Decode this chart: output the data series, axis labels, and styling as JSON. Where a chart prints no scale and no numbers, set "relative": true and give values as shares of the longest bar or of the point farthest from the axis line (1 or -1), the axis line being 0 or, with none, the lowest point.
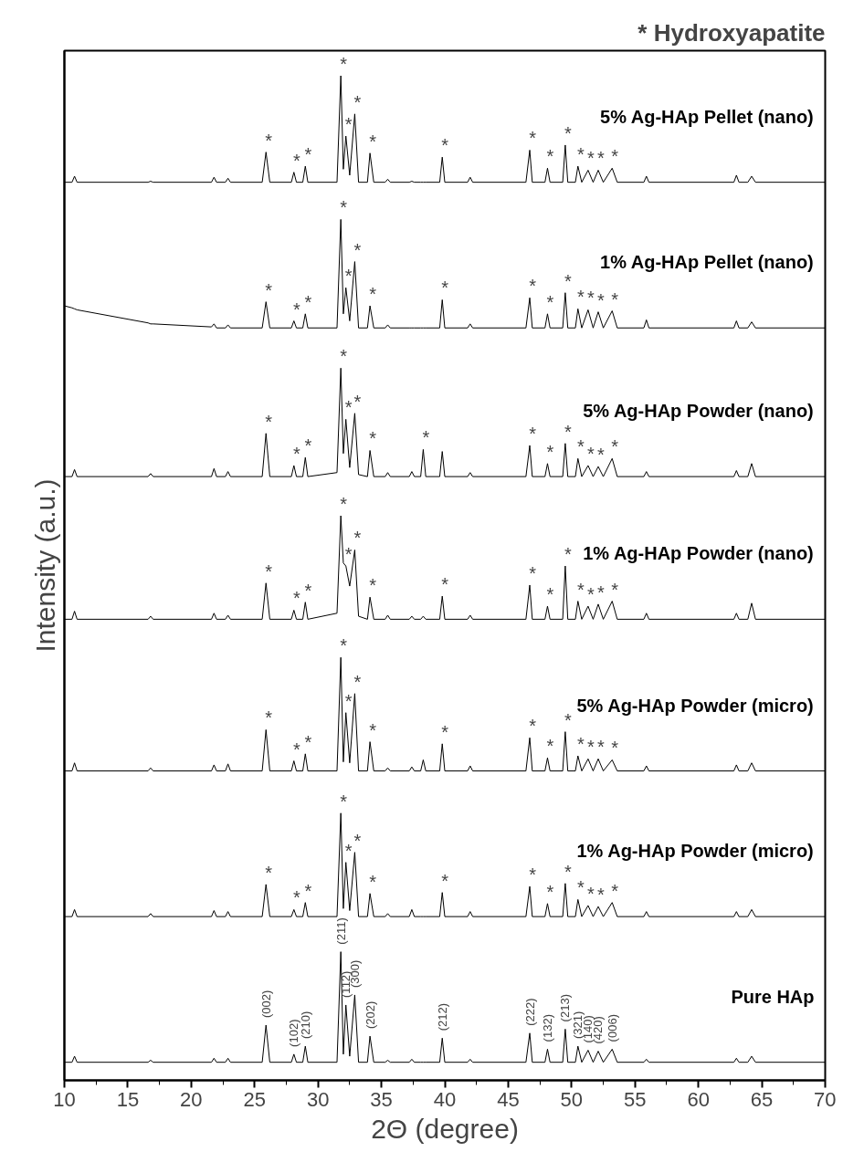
{
  "chart_data": {
    "type": "line",
    "title": "* Hydroxyapatite",
    "xlabel": "2Θ (degree)",
    "ylabel": "Intensity (a.u.)",
    "relative": true,
    "grid": false,
    "xlim": [
      10,
      70
    ],
    "xticks": [
      10,
      {
        "value": 12.5,
        "label": null
      },
      15,
      {
        "value": 17.5,
        "label": null
      },
      20,
      {
        "value": 22.5,
        "label": null
      },
      25,
      {
        "value": 27.5,
        "label": null
      },
      30,
      {
        "value": 32.5,
        "label": null
      },
      35,
      {
        "value": 37.5,
        "label": null
      },
      40,
      {
        "value": 42.5,
        "label": null
      },
      45,
      {
        "value": 47.5,
        "label": null
      },
      50,
      {
        "value": 52.5,
        "label": null
      },
      55,
      {
        "value": 57.5,
        "label": null
      },
      60,
      {
        "value": 62.5,
        "label": null
      },
      65,
      {
        "value": 67.5,
        "label": null
      },
      70
    ],
    "x": [
      10,
      10.6,
      10.8,
      11.0,
      16.6,
      16.8,
      17.0,
      21.6,
      21.8,
      22.0,
      22.7,
      22.9,
      23.1,
      25.6,
      25.9,
      26.2,
      27.9,
      28.1,
      28.3,
      28.8,
      29.0,
      29.2,
      31.5,
      31.8,
      32.0,
      32.2,
      32.5,
      32.9,
      33.2,
      33.9,
      34.1,
      34.4,
      35.3,
      35.5,
      35.7,
      37.2,
      37.4,
      37.6,
      38.1,
      38.3,
      38.5,
      39.6,
      39.8,
      40.0,
      41.8,
      42.0,
      42.2,
      46.4,
      46.7,
      46.9,
      47.9,
      48.1,
      48.3,
      49.3,
      49.5,
      49.7,
      50.3,
      50.5,
      50.8,
      51.3,
      51.7,
      52.1,
      52.5,
      53.2,
      53.6,
      55.7,
      55.9,
      56.1,
      62.8,
      63.0,
      63.2,
      63.9,
      64.2,
      64.5,
      70
    ],
    "series": [
      {
        "name": "5% Ag-HAp Pellet (nano)",
        "color": "#000000",
        "values": [
          0.894,
          0.894,
          0.9,
          0.894,
          0.894,
          0.895,
          0.894,
          0.894,
          0.899,
          0.894,
          0.894,
          0.898,
          0.894,
          0.894,
          0.924,
          0.894,
          0.894,
          0.904,
          0.894,
          0.894,
          0.91,
          0.894,
          0.894,
          1.0,
          0.907,
          0.94,
          0.901,
          0.962,
          0.894,
          0.894,
          0.923,
          0.894,
          0.894,
          0.897,
          0.894,
          0.894,
          0.895,
          0.894,
          0.894,
          0.894,
          0.894,
          0.894,
          0.919,
          0.894,
          0.894,
          0.899,
          0.894,
          0.894,
          0.926,
          0.894,
          0.894,
          0.908,
          0.894,
          0.894,
          0.931,
          0.894,
          0.894,
          0.91,
          0.894,
          0.906,
          0.894,
          0.906,
          0.894,
          0.908,
          0.894,
          0.894,
          0.9,
          0.894,
          0.894,
          0.901,
          0.894,
          0.894,
          0.9,
          0.894,
          0.894
        ]
      },
      {
        "name": "1% Ag-HAp Pellet (nano)",
        "color": "#000000",
        "values": [
          0.771,
          0.769,
          0.768,
          0.767,
          0.754,
          0.753,
          0.753,
          0.75,
          0.753,
          0.749,
          0.749,
          0.752,
          0.749,
          0.749,
          0.775,
          0.749,
          0.749,
          0.756,
          0.749,
          0.749,
          0.763,
          0.749,
          0.749,
          0.857,
          0.763,
          0.789,
          0.756,
          0.815,
          0.749,
          0.749,
          0.771,
          0.749,
          0.749,
          0.752,
          0.749,
          0.749,
          0.749,
          0.749,
          0.749,
          0.749,
          0.749,
          0.749,
          0.777,
          0.749,
          0.749,
          0.753,
          0.749,
          0.749,
          0.779,
          0.749,
          0.749,
          0.763,
          0.749,
          0.749,
          0.784,
          0.749,
          0.749,
          0.768,
          0.749,
          0.767,
          0.749,
          0.765,
          0.749,
          0.766,
          0.749,
          0.749,
          0.757,
          0.749,
          0.749,
          0.756,
          0.749,
          0.749,
          0.755,
          0.749,
          0.749
        ]
      },
      {
        "name": "5% Ag-HAp Powder (nano)",
        "color": "#000000",
        "values": [
          0.601,
          0.601,
          0.608,
          0.601,
          0.601,
          0.604,
          0.601,
          0.601,
          0.609,
          0.601,
          0.601,
          0.606,
          0.601,
          0.601,
          0.644,
          0.601,
          0.601,
          0.612,
          0.601,
          0.601,
          0.62,
          0.601,
          0.605,
          0.709,
          0.624,
          0.658,
          0.61,
          0.664,
          0.603,
          0.601,
          0.627,
          0.601,
          0.601,
          0.605,
          0.601,
          0.601,
          0.606,
          0.601,
          0.601,
          0.628,
          0.601,
          0.601,
          0.626,
          0.601,
          0.601,
          0.605,
          0.601,
          0.601,
          0.632,
          0.601,
          0.601,
          0.614,
          0.601,
          0.601,
          0.634,
          0.601,
          0.601,
          0.619,
          0.601,
          0.612,
          0.601,
          0.611,
          0.601,
          0.619,
          0.601,
          0.601,
          0.606,
          0.601,
          0.601,
          0.607,
          0.601,
          0.601,
          0.614,
          0.601,
          0.601
        ]
      },
      {
        "name": "1% Ag-HAp Powder (nano)",
        "color": "#000000",
        "values": [
          0.459,
          0.459,
          0.467,
          0.459,
          0.459,
          0.462,
          0.459,
          0.459,
          0.465,
          0.459,
          0.459,
          0.463,
          0.459,
          0.459,
          0.495,
          0.459,
          0.459,
          0.468,
          0.459,
          0.459,
          0.476,
          0.459,
          0.465,
          0.562,
          0.515,
          0.512,
          0.492,
          0.528,
          0.462,
          0.459,
          0.481,
          0.459,
          0.459,
          0.463,
          0.459,
          0.459,
          0.462,
          0.459,
          0.459,
          0.462,
          0.459,
          0.459,
          0.482,
          0.459,
          0.459,
          0.463,
          0.459,
          0.459,
          0.493,
          0.459,
          0.459,
          0.472,
          0.459,
          0.459,
          0.512,
          0.459,
          0.459,
          0.477,
          0.459,
          0.472,
          0.459,
          0.474,
          0.459,
          0.477,
          0.459,
          0.459,
          0.465,
          0.459,
          0.459,
          0.465,
          0.459,
          0.459,
          0.475,
          0.459,
          0.459
        ]
      },
      {
        "name": "5% Ag-HAp Powder (micro)",
        "color": "#000000",
        "values": [
          0.308,
          0.308,
          0.316,
          0.308,
          0.308,
          0.311,
          0.308,
          0.308,
          0.314,
          0.308,
          0.308,
          0.315,
          0.308,
          0.308,
          0.349,
          0.308,
          0.308,
          0.318,
          0.308,
          0.308,
          0.325,
          0.308,
          0.308,
          0.421,
          0.317,
          0.366,
          0.316,
          0.385,
          0.308,
          0.308,
          0.337,
          0.308,
          0.308,
          0.311,
          0.308,
          0.308,
          0.312,
          0.308,
          0.308,
          0.319,
          0.308,
          0.308,
          0.335,
          0.308,
          0.308,
          0.313,
          0.308,
          0.308,
          0.341,
          0.308,
          0.308,
          0.321,
          0.308,
          0.308,
          0.347,
          0.308,
          0.308,
          0.323,
          0.308,
          0.32,
          0.308,
          0.32,
          0.308,
          0.319,
          0.308,
          0.308,
          0.313,
          0.308,
          0.308,
          0.314,
          0.308,
          0.308,
          0.316,
          0.308,
          0.308
        ]
      },
      {
        "name": "1% Ag-HAp Powder (micro)",
        "color": "#000000",
        "values": [
          0.163,
          0.163,
          0.17,
          0.163,
          0.163,
          0.166,
          0.163,
          0.163,
          0.169,
          0.163,
          0.163,
          0.168,
          0.163,
          0.163,
          0.195,
          0.163,
          0.163,
          0.17,
          0.163,
          0.163,
          0.177,
          0.163,
          0.163,
          0.266,
          0.171,
          0.217,
          0.169,
          0.227,
          0.163,
          0.163,
          0.186,
          0.163,
          0.163,
          0.166,
          0.163,
          0.163,
          0.17,
          0.163,
          0.163,
          0.163,
          0.163,
          0.163,
          0.187,
          0.163,
          0.163,
          0.168,
          0.163,
          0.163,
          0.193,
          0.163,
          0.163,
          0.176,
          0.163,
          0.163,
          0.196,
          0.163,
          0.163,
          0.18,
          0.163,
          0.174,
          0.163,
          0.173,
          0.163,
          0.177,
          0.163,
          0.163,
          0.168,
          0.163,
          0.163,
          0.168,
          0.163,
          0.163,
          0.17,
          0.163,
          0.163
        ]
      },
      {
        "name": "Pure HAp",
        "color": "#000000",
        "values": [
          0.018,
          0.018,
          0.024,
          0.018,
          0.018,
          0.02,
          0.018,
          0.018,
          0.022,
          0.018,
          0.018,
          0.022,
          0.018,
          0.018,
          0.055,
          0.018,
          0.018,
          0.026,
          0.018,
          0.018,
          0.034,
          0.018,
          0.018,
          0.128,
          0.026,
          0.075,
          0.024,
          0.085,
          0.018,
          0.018,
          0.044,
          0.018,
          0.018,
          0.02,
          0.018,
          0.018,
          0.021,
          0.018,
          0.018,
          0.018,
          0.018,
          0.018,
          0.042,
          0.018,
          0.018,
          0.021,
          0.018,
          0.018,
          0.047,
          0.018,
          0.018,
          0.031,
          0.018,
          0.018,
          0.051,
          0.018,
          0.018,
          0.034,
          0.018,
          0.03,
          0.018,
          0.029,
          0.018,
          0.031,
          0.018,
          0.018,
          0.021,
          0.018,
          0.018,
          0.022,
          0.018,
          0.018,
          0.024,
          0.018,
          0.018
        ]
      }
    ],
    "annotations": [
      {
        "text": "*",
        "x": 25.9,
        "y": 0.924
      },
      {
        "text": "*",
        "x": 28.1,
        "y": 0.904
      },
      {
        "text": "*",
        "x": 29.0,
        "y": 0.91
      },
      {
        "text": "*",
        "x": 31.8,
        "y": 1.0
      },
      {
        "text": "*",
        "x": 32.2,
        "y": 0.94
      },
      {
        "text": "*",
        "x": 32.9,
        "y": 0.962
      },
      {
        "text": "*",
        "x": 34.1,
        "y": 0.923
      },
      {
        "text": "*",
        "x": 39.8,
        "y": 0.919
      },
      {
        "text": "*",
        "x": 46.7,
        "y": 0.926
      },
      {
        "text": "*",
        "x": 48.1,
        "y": 0.908
      },
      {
        "text": "*",
        "x": 49.5,
        "y": 0.931
      },
      {
        "text": "*",
        "x": 50.5,
        "y": 0.91
      },
      {
        "text": "*",
        "x": 51.3,
        "y": 0.906
      },
      {
        "text": "*",
        "x": 52.1,
        "y": 0.906
      },
      {
        "text": "*",
        "x": 53.2,
        "y": 0.908
      },
      {
        "text": "*",
        "x": 25.9,
        "y": 0.775
      },
      {
        "text": "*",
        "x": 28.1,
        "y": 0.756
      },
      {
        "text": "*",
        "x": 29.0,
        "y": 0.763
      },
      {
        "text": "*",
        "x": 31.8,
        "y": 0.857
      },
      {
        "text": "*",
        "x": 32.2,
        "y": 0.789
      },
      {
        "text": "*",
        "x": 32.9,
        "y": 0.815
      },
      {
        "text": "*",
        "x": 34.1,
        "y": 0.771
      },
      {
        "text": "*",
        "x": 39.8,
        "y": 0.777
      },
      {
        "text": "*",
        "x": 46.7,
        "y": 0.779
      },
      {
        "text": "*",
        "x": 48.1,
        "y": 0.763
      },
      {
        "text": "*",
        "x": 49.5,
        "y": 0.784
      },
      {
        "text": "*",
        "x": 50.5,
        "y": 0.768
      },
      {
        "text": "*",
        "x": 51.3,
        "y": 0.767
      },
      {
        "text": "*",
        "x": 52.1,
        "y": 0.765
      },
      {
        "text": "*",
        "x": 53.2,
        "y": 0.766
      },
      {
        "text": "*",
        "x": 25.9,
        "y": 0.644
      },
      {
        "text": "*",
        "x": 28.1,
        "y": 0.612
      },
      {
        "text": "*",
        "x": 29.0,
        "y": 0.62
      },
      {
        "text": "*",
        "x": 31.8,
        "y": 0.709
      },
      {
        "text": "*",
        "x": 32.2,
        "y": 0.658
      },
      {
        "text": "*",
        "x": 32.9,
        "y": 0.664
      },
      {
        "text": "*",
        "x": 34.1,
        "y": 0.627
      },
      {
        "text": "*",
        "x": 38.3,
        "y": 0.628
      },
      {
        "text": "*",
        "x": 46.7,
        "y": 0.632
      },
      {
        "text": "*",
        "x": 48.1,
        "y": 0.614
      },
      {
        "text": "*",
        "x": 49.5,
        "y": 0.634
      },
      {
        "text": "*",
        "x": 50.5,
        "y": 0.619
      },
      {
        "text": "*",
        "x": 51.3,
        "y": 0.612
      },
      {
        "text": "*",
        "x": 52.1,
        "y": 0.611
      },
      {
        "text": "*",
        "x": 53.2,
        "y": 0.619
      },
      {
        "text": "*",
        "x": 25.9,
        "y": 0.495
      },
      {
        "text": "*",
        "x": 28.1,
        "y": 0.468
      },
      {
        "text": "*",
        "x": 29.0,
        "y": 0.476
      },
      {
        "text": "*",
        "x": 31.8,
        "y": 0.562
      },
      {
        "text": "*",
        "x": 32.2,
        "y": 0.512
      },
      {
        "text": "*",
        "x": 32.9,
        "y": 0.528
      },
      {
        "text": "*",
        "x": 34.1,
        "y": 0.481
      },
      {
        "text": "*",
        "x": 39.8,
        "y": 0.482
      },
      {
        "text": "*",
        "x": 46.7,
        "y": 0.493
      },
      {
        "text": "*",
        "x": 48.1,
        "y": 0.472
      },
      {
        "text": "*",
        "x": 49.5,
        "y": 0.512
      },
      {
        "text": "*",
        "x": 50.5,
        "y": 0.477
      },
      {
        "text": "*",
        "x": 51.3,
        "y": 0.472
      },
      {
        "text": "*",
        "x": 52.1,
        "y": 0.474
      },
      {
        "text": "*",
        "x": 53.2,
        "y": 0.477
      },
      {
        "text": "*",
        "x": 25.9,
        "y": 0.349
      },
      {
        "text": "*",
        "x": 28.1,
        "y": 0.318
      },
      {
        "text": "*",
        "x": 29.0,
        "y": 0.325
      },
      {
        "text": "*",
        "x": 31.8,
        "y": 0.421
      },
      {
        "text": "*",
        "x": 32.2,
        "y": 0.366
      },
      {
        "text": "*",
        "x": 32.9,
        "y": 0.385
      },
      {
        "text": "*",
        "x": 34.1,
        "y": 0.337
      },
      {
        "text": "*",
        "x": 39.8,
        "y": 0.335
      },
      {
        "text": "*",
        "x": 46.7,
        "y": 0.341
      },
      {
        "text": "*",
        "x": 48.1,
        "y": 0.321
      },
      {
        "text": "*",
        "x": 49.5,
        "y": 0.347
      },
      {
        "text": "*",
        "x": 50.5,
        "y": 0.323
      },
      {
        "text": "*",
        "x": 51.3,
        "y": 0.32
      },
      {
        "text": "*",
        "x": 52.1,
        "y": 0.32
      },
      {
        "text": "*",
        "x": 53.2,
        "y": 0.319
      },
      {
        "text": "*",
        "x": 25.9,
        "y": 0.195
      },
      {
        "text": "*",
        "x": 28.1,
        "y": 0.17
      },
      {
        "text": "*",
        "x": 29.0,
        "y": 0.177
      },
      {
        "text": "*",
        "x": 31.8,
        "y": 0.266
      },
      {
        "text": "*",
        "x": 32.2,
        "y": 0.217
      },
      {
        "text": "*",
        "x": 32.9,
        "y": 0.227
      },
      {
        "text": "*",
        "x": 34.1,
        "y": 0.186
      },
      {
        "text": "*",
        "x": 39.8,
        "y": 0.187
      },
      {
        "text": "*",
        "x": 46.7,
        "y": 0.193
      },
      {
        "text": "*",
        "x": 48.1,
        "y": 0.176
      },
      {
        "text": "*",
        "x": 49.5,
        "y": 0.196
      },
      {
        "text": "*",
        "x": 50.5,
        "y": 0.18
      },
      {
        "text": "*",
        "x": 51.3,
        "y": 0.174
      },
      {
        "text": "*",
        "x": 52.1,
        "y": 0.173
      },
      {
        "text": "*",
        "x": 53.2,
        "y": 0.177
      },
      {
        "text": "(002)",
        "x": 25.9,
        "y": 0.055
      },
      {
        "text": "(102)",
        "x": 28.1,
        "y": 0.026
      },
      {
        "text": "(210)",
        "x": 29.0,
        "y": 0.034
      },
      {
        "text": "(211)",
        "x": 31.8,
        "y": 0.128
      },
      {
        "text": "(112)",
        "x": 32.2,
        "y": 0.075
      },
      {
        "text": "(300)",
        "x": 32.9,
        "y": 0.085
      },
      {
        "text": "(202)",
        "x": 34.1,
        "y": 0.044
      },
      {
        "text": "(212)",
        "x": 39.8,
        "y": 0.042
      },
      {
        "text": "(222)",
        "x": 46.7,
        "y": 0.047
      },
      {
        "text": "(132)",
        "x": 48.1,
        "y": 0.031
      },
      {
        "text": "(213)",
        "x": 49.5,
        "y": 0.051
      },
      {
        "text": "(321)",
        "x": 50.5,
        "y": 0.034
      },
      {
        "text": "(140)",
        "x": 51.3,
        "y": 0.03
      },
      {
        "text": "(420)",
        "x": 52.1,
        "y": 0.029
      },
      {
        "text": "(006)",
        "x": 53.2,
        "y": 0.031
      }
    ]
  }
}
